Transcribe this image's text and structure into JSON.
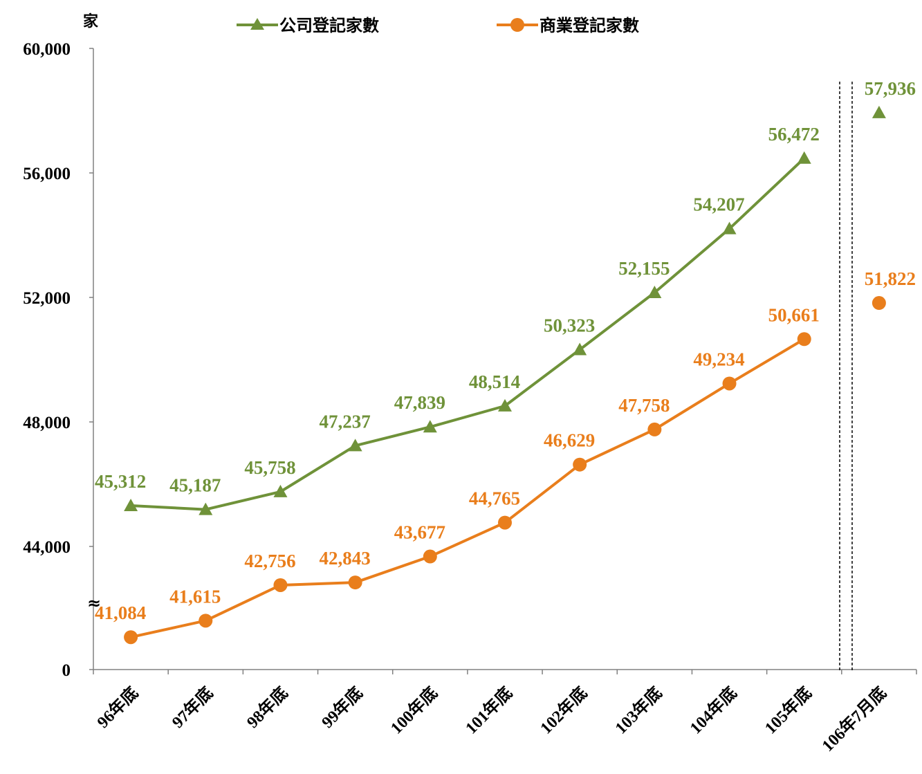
{
  "chart_data": {
    "type": "line",
    "unit_label": "家",
    "categories": [
      "96年底",
      "97年底",
      "98年底",
      "99年底",
      "100年底",
      "101年底",
      "102年底",
      "103年底",
      "104年底",
      "105年底",
      "106年7月底"
    ],
    "series": [
      {
        "name": "公司登記家數",
        "color": "#6f9239",
        "marker": "triangle",
        "values": [
          45312,
          45187,
          45758,
          47237,
          47839,
          48514,
          50323,
          52155,
          54207,
          56472,
          57936
        ],
        "labels": [
          "45,312",
          "45,187",
          "45,758",
          "47,237",
          "47,839",
          "48,514",
          "50,323",
          "52,155",
          "54,207",
          "56,472",
          "57,936"
        ]
      },
      {
        "name": "商業登記家數",
        "color": "#e97e1c",
        "marker": "circle",
        "values": [
          41084,
          41615,
          42756,
          42843,
          43677,
          44765,
          46629,
          47758,
          49234,
          50661,
          51822
        ],
        "labels": [
          "41,084",
          "41,615",
          "42,756",
          "42,843",
          "43,677",
          "44,765",
          "46,629",
          "47,758",
          "49,234",
          "50,661",
          "51,822"
        ]
      }
    ],
    "connected_count": 10,
    "y_ticks": [
      0,
      44000,
      48000,
      52000,
      56000,
      60000
    ],
    "y_tick_labels": [
      "0",
      "44,000",
      "48,000",
      "52,000",
      "56,000",
      "60,000"
    ],
    "axis_break_symbol": "≈",
    "ylim": [
      40000,
      60000
    ],
    "axis_break": true,
    "legend_position": "top",
    "grid": false
  }
}
